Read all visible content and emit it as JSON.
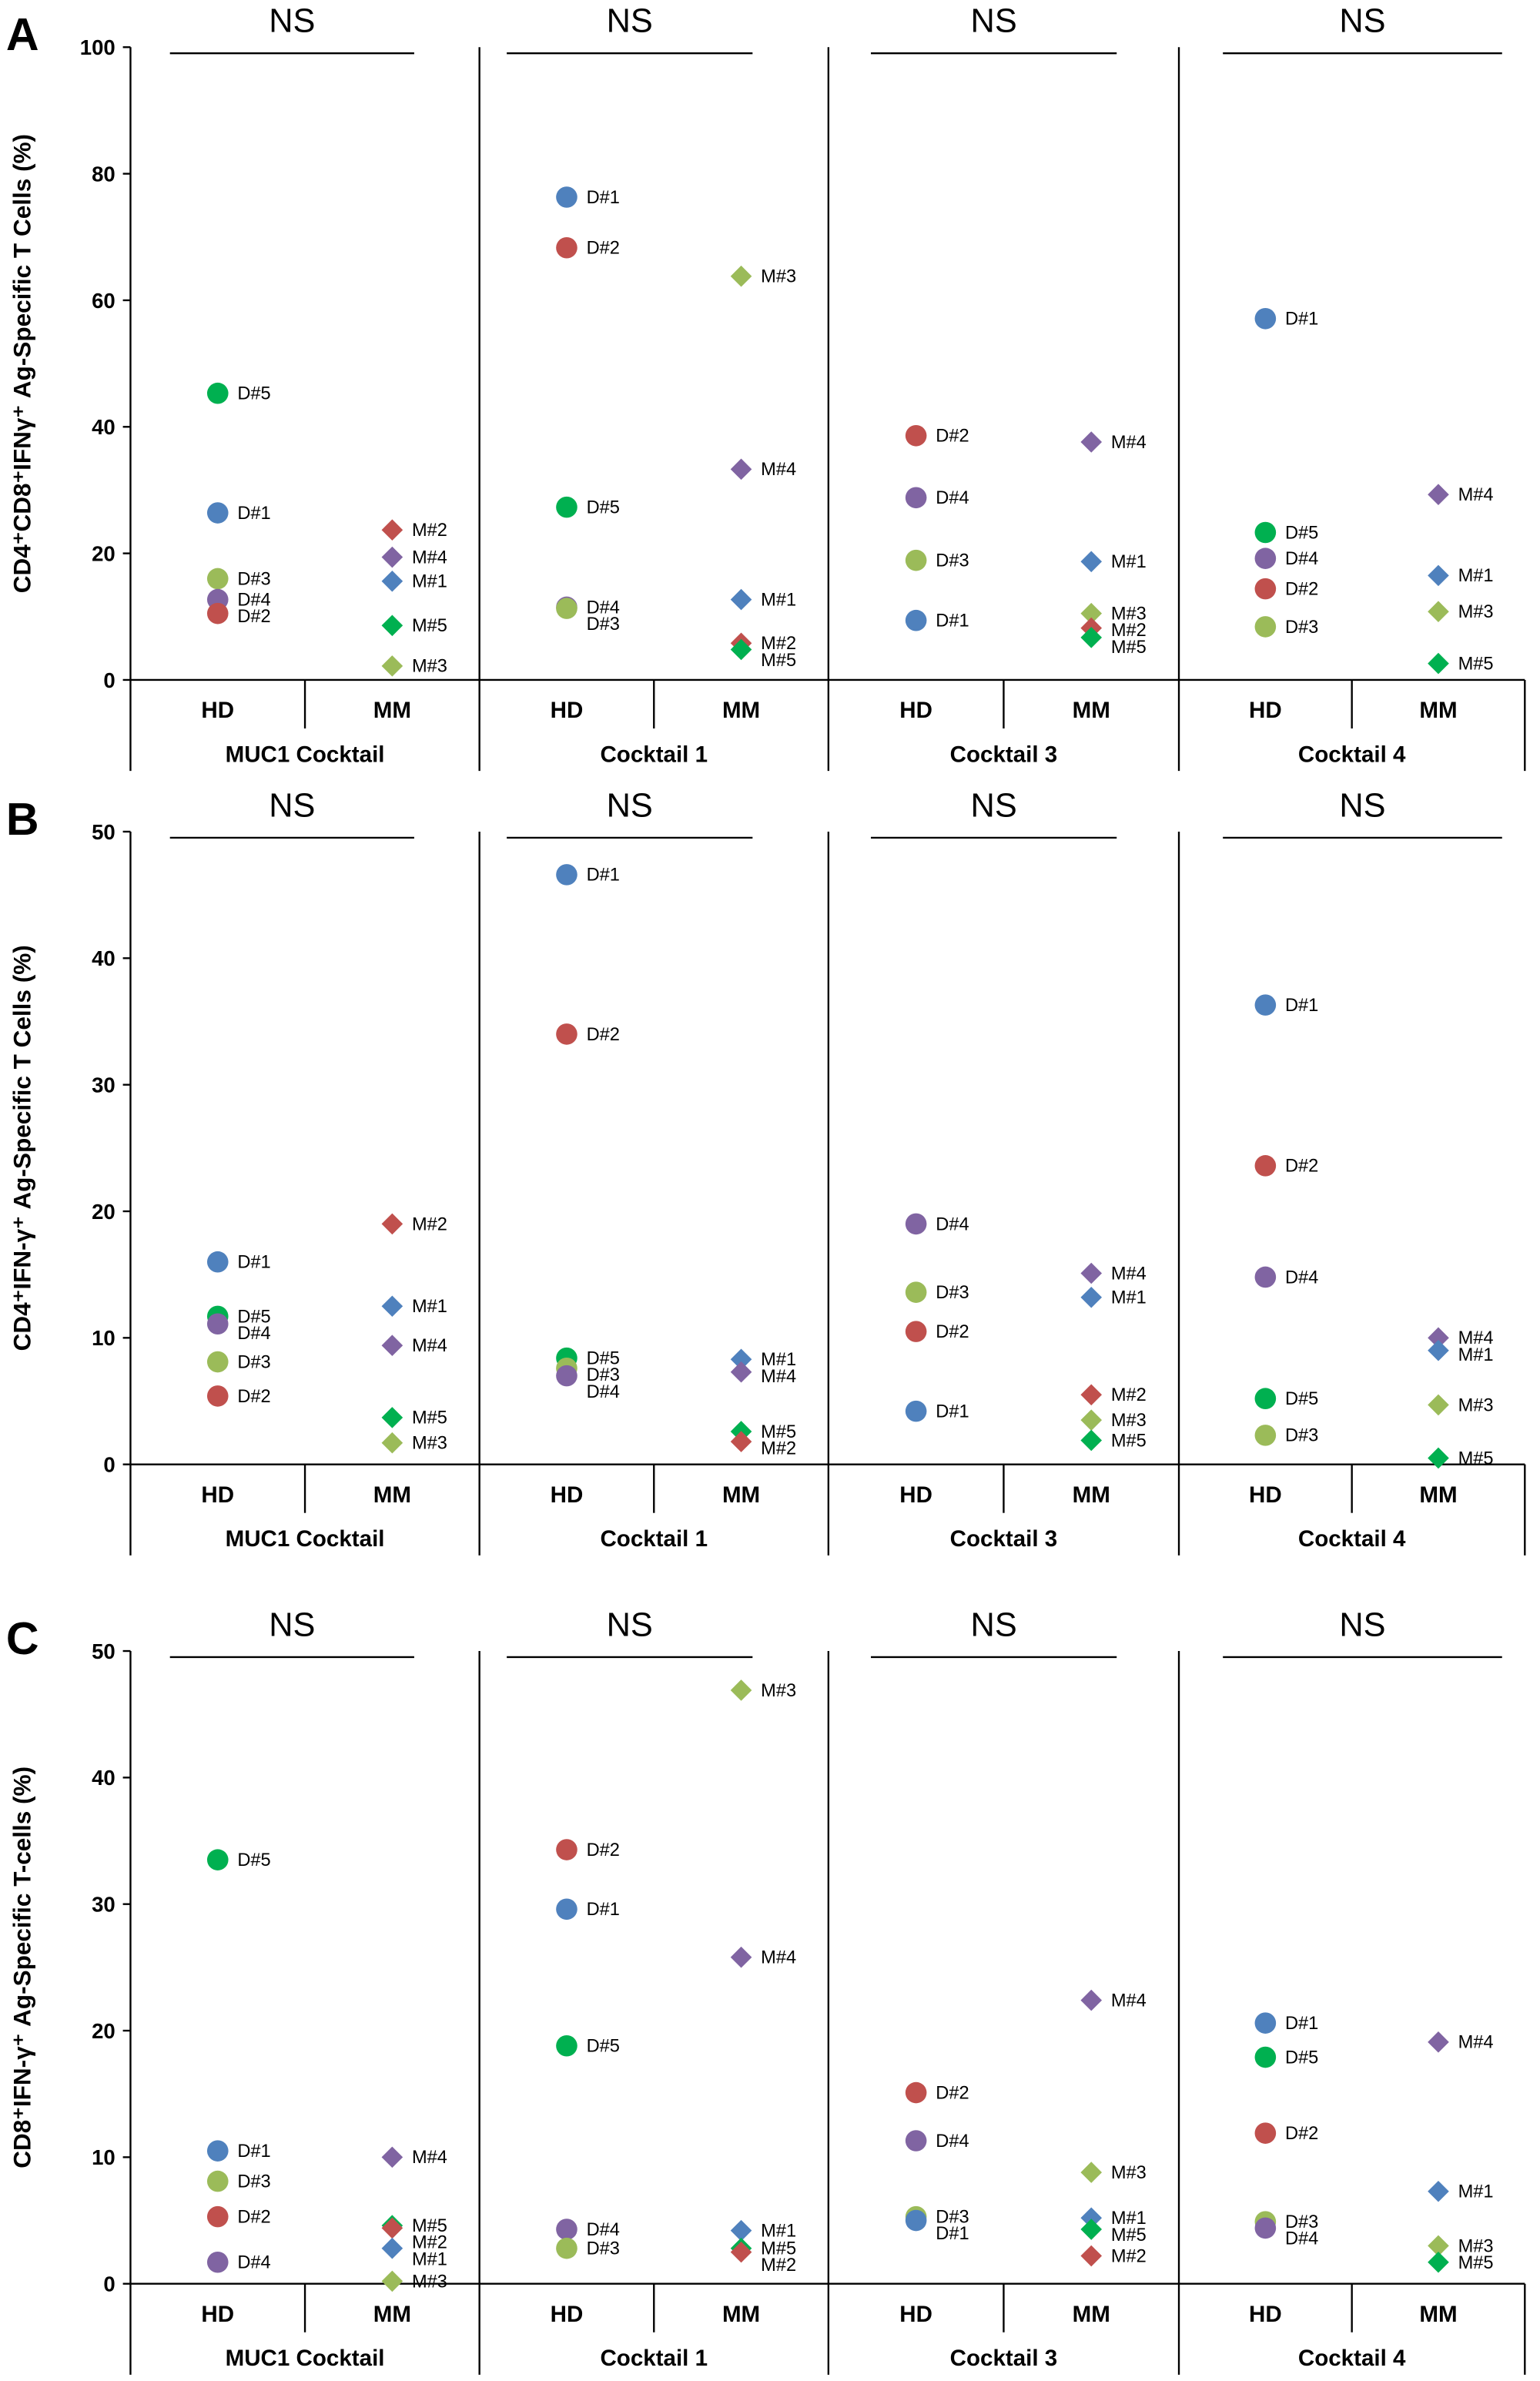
{
  "colors": {
    "1": "#4f81bd",
    "2": "#c0504d",
    "3": "#9bbb59",
    "4": "#8064a2",
    "5": "#00b050"
  },
  "markers": {
    "HD": "circle",
    "MM": "diamond"
  },
  "chart_data": [
    {
      "type": "scatter",
      "panel": "A",
      "ylabel": "CD4⁺CD8⁺IFNγ⁺ Ag-Specific T Cells (%)",
      "ylim": [
        0,
        100
      ],
      "yticks": [
        0,
        20,
        40,
        60,
        80,
        100
      ],
      "categories": [
        "HD",
        "MM"
      ],
      "groups": [
        {
          "name": "MUC1 Cocktail",
          "significance": "NS",
          "HD": [
            {
              "label": "D#5",
              "id": 5,
              "value": 45.3
            },
            {
              "label": "D#1",
              "id": 1,
              "value": 26.4
            },
            {
              "label": "D#3",
              "id": 3,
              "value": 16.0
            },
            {
              "label": "D#4",
              "id": 4,
              "value": 12.7
            },
            {
              "label": "D#2",
              "id": 2,
              "value": 10.5
            }
          ],
          "MM": [
            {
              "label": "M#2",
              "id": 2,
              "value": 23.7
            },
            {
              "label": "M#4",
              "id": 4,
              "value": 19.4
            },
            {
              "label": "M#1",
              "id": 1,
              "value": 15.6
            },
            {
              "label": "M#5",
              "id": 5,
              "value": 8.6
            },
            {
              "label": "M#3",
              "id": 3,
              "value": 2.2
            }
          ]
        },
        {
          "name": "Cocktail 1",
          "significance": "NS",
          "HD": [
            {
              "label": "D#1",
              "id": 1,
              "value": 76.3
            },
            {
              "label": "D#2",
              "id": 2,
              "value": 68.3
            },
            {
              "label": "D#5",
              "id": 5,
              "value": 27.3
            },
            {
              "label": "D#4",
              "id": 4,
              "value": 11.5
            },
            {
              "label": "D#3",
              "id": 3,
              "value": 11.3
            }
          ],
          "MM": [
            {
              "label": "M#3",
              "id": 3,
              "value": 63.8
            },
            {
              "label": "M#4",
              "id": 4,
              "value": 33.3
            },
            {
              "label": "M#1",
              "id": 1,
              "value": 12.7
            },
            {
              "label": "M#2",
              "id": 2,
              "value": 5.8
            },
            {
              "label": "M#5",
              "id": 5,
              "value": 4.8
            }
          ]
        },
        {
          "name": "Cocktail 3",
          "significance": "NS",
          "HD": [
            {
              "label": "D#2",
              "id": 2,
              "value": 38.6
            },
            {
              "label": "D#4",
              "id": 4,
              "value": 28.8
            },
            {
              "label": "D#3",
              "id": 3,
              "value": 18.9
            },
            {
              "label": "D#1",
              "id": 1,
              "value": 9.4
            }
          ],
          "MM": [
            {
              "label": "M#4",
              "id": 4,
              "value": 37.6
            },
            {
              "label": "M#1",
              "id": 1,
              "value": 18.7
            },
            {
              "label": "M#3",
              "id": 3,
              "value": 10.5
            },
            {
              "label": "M#2",
              "id": 2,
              "value": 8.2
            },
            {
              "label": "M#5",
              "id": 5,
              "value": 6.7
            }
          ]
        },
        {
          "name": "Cocktail 4",
          "significance": "NS",
          "HD": [
            {
              "label": "D#1",
              "id": 1,
              "value": 57.1
            },
            {
              "label": "D#5",
              "id": 5,
              "value": 23.3
            },
            {
              "label": "D#4",
              "id": 4,
              "value": 19.2
            },
            {
              "label": "D#2",
              "id": 2,
              "value": 14.4
            },
            {
              "label": "D#3",
              "id": 3,
              "value": 8.4
            }
          ],
          "MM": [
            {
              "label": "M#4",
              "id": 4,
              "value": 29.3
            },
            {
              "label": "M#1",
              "id": 1,
              "value": 16.5
            },
            {
              "label": "M#3",
              "id": 3,
              "value": 10.8
            },
            {
              "label": "M#5",
              "id": 5,
              "value": 2.6
            }
          ]
        }
      ]
    },
    {
      "type": "scatter",
      "panel": "B",
      "ylabel": "CD4⁺IFN-γ⁺ Ag-Specific T Cells (%)",
      "ylim": [
        0,
        50
      ],
      "yticks": [
        0,
        10,
        20,
        30,
        40,
        50
      ],
      "categories": [
        "HD",
        "MM"
      ],
      "groups": [
        {
          "name": "MUC1 Cocktail",
          "significance": "NS",
          "HD": [
            {
              "label": "D#1",
              "id": 1,
              "value": 16.0
            },
            {
              "label": "D#5",
              "id": 5,
              "value": 11.7
            },
            {
              "label": "D#4",
              "id": 4,
              "value": 11.1
            },
            {
              "label": "D#3",
              "id": 3,
              "value": 8.1
            },
            {
              "label": "D#2",
              "id": 2,
              "value": 5.4
            }
          ],
          "MM": [
            {
              "label": "M#2",
              "id": 2,
              "value": 19.0
            },
            {
              "label": "M#1",
              "id": 1,
              "value": 12.5
            },
            {
              "label": "M#4",
              "id": 4,
              "value": 9.4
            },
            {
              "label": "M#5",
              "id": 5,
              "value": 3.7
            },
            {
              "label": "M#3",
              "id": 3,
              "value": 1.7
            }
          ]
        },
        {
          "name": "Cocktail 1",
          "significance": "NS",
          "HD": [
            {
              "label": "D#1",
              "id": 1,
              "value": 46.6
            },
            {
              "label": "D#2",
              "id": 2,
              "value": 34.0
            },
            {
              "label": "D#5",
              "id": 5,
              "value": 8.4
            },
            {
              "label": "D#3",
              "id": 3,
              "value": 7.6
            },
            {
              "label": "D#4",
              "id": 4,
              "value": 7.0
            }
          ],
          "MM": [
            {
              "label": "M#1",
              "id": 1,
              "value": 8.3
            },
            {
              "label": "M#4",
              "id": 4,
              "value": 7.3
            },
            {
              "label": "M#5",
              "id": 5,
              "value": 2.6
            },
            {
              "label": "M#2",
              "id": 2,
              "value": 1.8
            }
          ]
        },
        {
          "name": "Cocktail 3",
          "significance": "NS",
          "HD": [
            {
              "label": "D#4",
              "id": 4,
              "value": 19.0
            },
            {
              "label": "D#3",
              "id": 3,
              "value": 13.6
            },
            {
              "label": "D#2",
              "id": 2,
              "value": 10.5
            },
            {
              "label": "D#1",
              "id": 1,
              "value": 4.2
            }
          ],
          "MM": [
            {
              "label": "M#4",
              "id": 4,
              "value": 15.1
            },
            {
              "label": "M#1",
              "id": 1,
              "value": 13.2
            },
            {
              "label": "M#2",
              "id": 2,
              "value": 5.5
            },
            {
              "label": "M#3",
              "id": 3,
              "value": 3.5
            },
            {
              "label": "M#5",
              "id": 5,
              "value": 1.9
            }
          ]
        },
        {
          "name": "Cocktail 4",
          "significance": "NS",
          "HD": [
            {
              "label": "D#1",
              "id": 1,
              "value": 36.3
            },
            {
              "label": "D#2",
              "id": 2,
              "value": 23.6
            },
            {
              "label": "D#4",
              "id": 4,
              "value": 14.8
            },
            {
              "label": "D#5",
              "id": 5,
              "value": 5.2
            },
            {
              "label": "D#3",
              "id": 3,
              "value": 2.3
            }
          ],
          "MM": [
            {
              "label": "M#4",
              "id": 4,
              "value": 10.0
            },
            {
              "label": "M#1",
              "id": 1,
              "value": 9.0
            },
            {
              "label": "M#3",
              "id": 3,
              "value": 4.7
            },
            {
              "label": "M#5",
              "id": 5,
              "value": 0.5
            }
          ]
        }
      ]
    },
    {
      "type": "scatter",
      "panel": "C",
      "ylabel": "CD8⁺IFN-γ⁺ Ag-Specific T-cells (%)",
      "ylim": [
        0,
        50
      ],
      "yticks": [
        0,
        10,
        20,
        30,
        40,
        50
      ],
      "categories": [
        "HD",
        "MM"
      ],
      "groups": [
        {
          "name": "MUC1 Cocktail",
          "significance": "NS",
          "HD": [
            {
              "label": "D#5",
              "id": 5,
              "value": 33.5
            },
            {
              "label": "D#1",
              "id": 1,
              "value": 10.5
            },
            {
              "label": "D#3",
              "id": 3,
              "value": 8.1
            },
            {
              "label": "D#2",
              "id": 2,
              "value": 5.3
            },
            {
              "label": "D#4",
              "id": 4,
              "value": 1.7
            }
          ],
          "MM": [
            {
              "label": "M#4",
              "id": 4,
              "value": 10.0
            },
            {
              "label": "M#5",
              "id": 5,
              "value": 4.6
            },
            {
              "label": "M#2",
              "id": 2,
              "value": 4.4
            },
            {
              "label": "M#1",
              "id": 1,
              "value": 2.8
            },
            {
              "label": "M#3",
              "id": 3,
              "value": 0.2
            }
          ]
        },
        {
          "name": "Cocktail 1",
          "significance": "NS",
          "HD": [
            {
              "label": "D#2",
              "id": 2,
              "value": 34.3
            },
            {
              "label": "D#1",
              "id": 1,
              "value": 29.6
            },
            {
              "label": "D#5",
              "id": 5,
              "value": 18.8
            },
            {
              "label": "D#4",
              "id": 4,
              "value": 4.3
            },
            {
              "label": "D#3",
              "id": 3,
              "value": 2.8
            }
          ],
          "MM": [
            {
              "label": "M#3",
              "id": 3,
              "value": 46.9
            },
            {
              "label": "M#4",
              "id": 4,
              "value": 25.8
            },
            {
              "label": "M#1",
              "id": 1,
              "value": 4.2
            },
            {
              "label": "M#5",
              "id": 5,
              "value": 2.8
            },
            {
              "label": "M#2",
              "id": 2,
              "value": 2.5
            }
          ]
        },
        {
          "name": "Cocktail 3",
          "significance": "NS",
          "HD": [
            {
              "label": "D#2",
              "id": 2,
              "value": 15.1
            },
            {
              "label": "D#4",
              "id": 4,
              "value": 11.3
            },
            {
              "label": "D#3",
              "id": 3,
              "value": 5.3
            },
            {
              "label": "D#1",
              "id": 1,
              "value": 5.0
            }
          ],
          "MM": [
            {
              "label": "M#4",
              "id": 4,
              "value": 22.4
            },
            {
              "label": "M#3",
              "id": 3,
              "value": 8.8
            },
            {
              "label": "M#1",
              "id": 1,
              "value": 5.2
            },
            {
              "label": "M#5",
              "id": 5,
              "value": 4.3
            },
            {
              "label": "M#2",
              "id": 2,
              "value": 2.2
            }
          ]
        },
        {
          "name": "Cocktail 4",
          "significance": "NS",
          "HD": [
            {
              "label": "D#1",
              "id": 1,
              "value": 20.6
            },
            {
              "label": "D#5",
              "id": 5,
              "value": 17.9
            },
            {
              "label": "D#2",
              "id": 2,
              "value": 11.9
            },
            {
              "label": "D#3",
              "id": 3,
              "value": 4.9
            },
            {
              "label": "D#4",
              "id": 4,
              "value": 4.4
            }
          ],
          "MM": [
            {
              "label": "M#4",
              "id": 4,
              "value": 19.1
            },
            {
              "label": "M#1",
              "id": 1,
              "value": 7.3
            },
            {
              "label": "M#3",
              "id": 3,
              "value": 3.0
            },
            {
              "label": "M#5",
              "id": 5,
              "value": 1.7
            }
          ]
        }
      ]
    }
  ]
}
